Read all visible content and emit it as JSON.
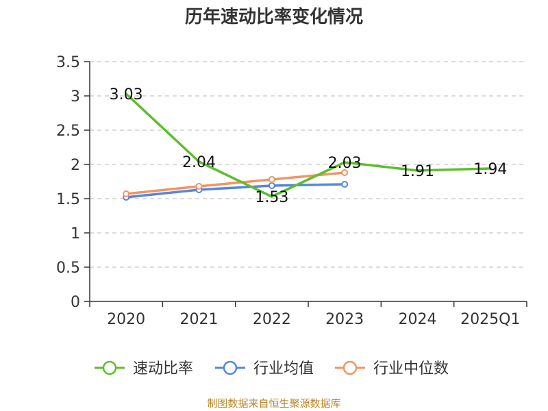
{
  "chart_data": {
    "type": "line",
    "title": "历年速动比率变化情况",
    "categories": [
      "2020",
      "2021",
      "2022",
      "2023",
      "2024",
      "2025Q1"
    ],
    "y_ticks": [
      "0",
      "0.5",
      "1",
      "1.5",
      "2",
      "2.5",
      "3",
      "3.5"
    ],
    "ylim": [
      0,
      3.5
    ],
    "grid": true,
    "legend_position": "bottom",
    "series": [
      {
        "name": "速动比率",
        "color": "#5cbf2a",
        "values": [
          3.03,
          2.04,
          1.53,
          2.03,
          1.91,
          1.94
        ],
        "labels": [
          "3.03",
          "2.04",
          "1.53",
          "2.03",
          "1.91",
          "1.94"
        ]
      },
      {
        "name": "行业均值",
        "color": "#5585e0",
        "values": [
          1.52,
          1.63,
          1.69,
          1.71,
          null,
          null
        ]
      },
      {
        "name": "行业中位数",
        "color": "#f29461",
        "values": [
          1.57,
          1.68,
          1.78,
          1.88,
          null,
          null
        ]
      }
    ],
    "source": "制图数据来自恒生聚源数据库"
  }
}
